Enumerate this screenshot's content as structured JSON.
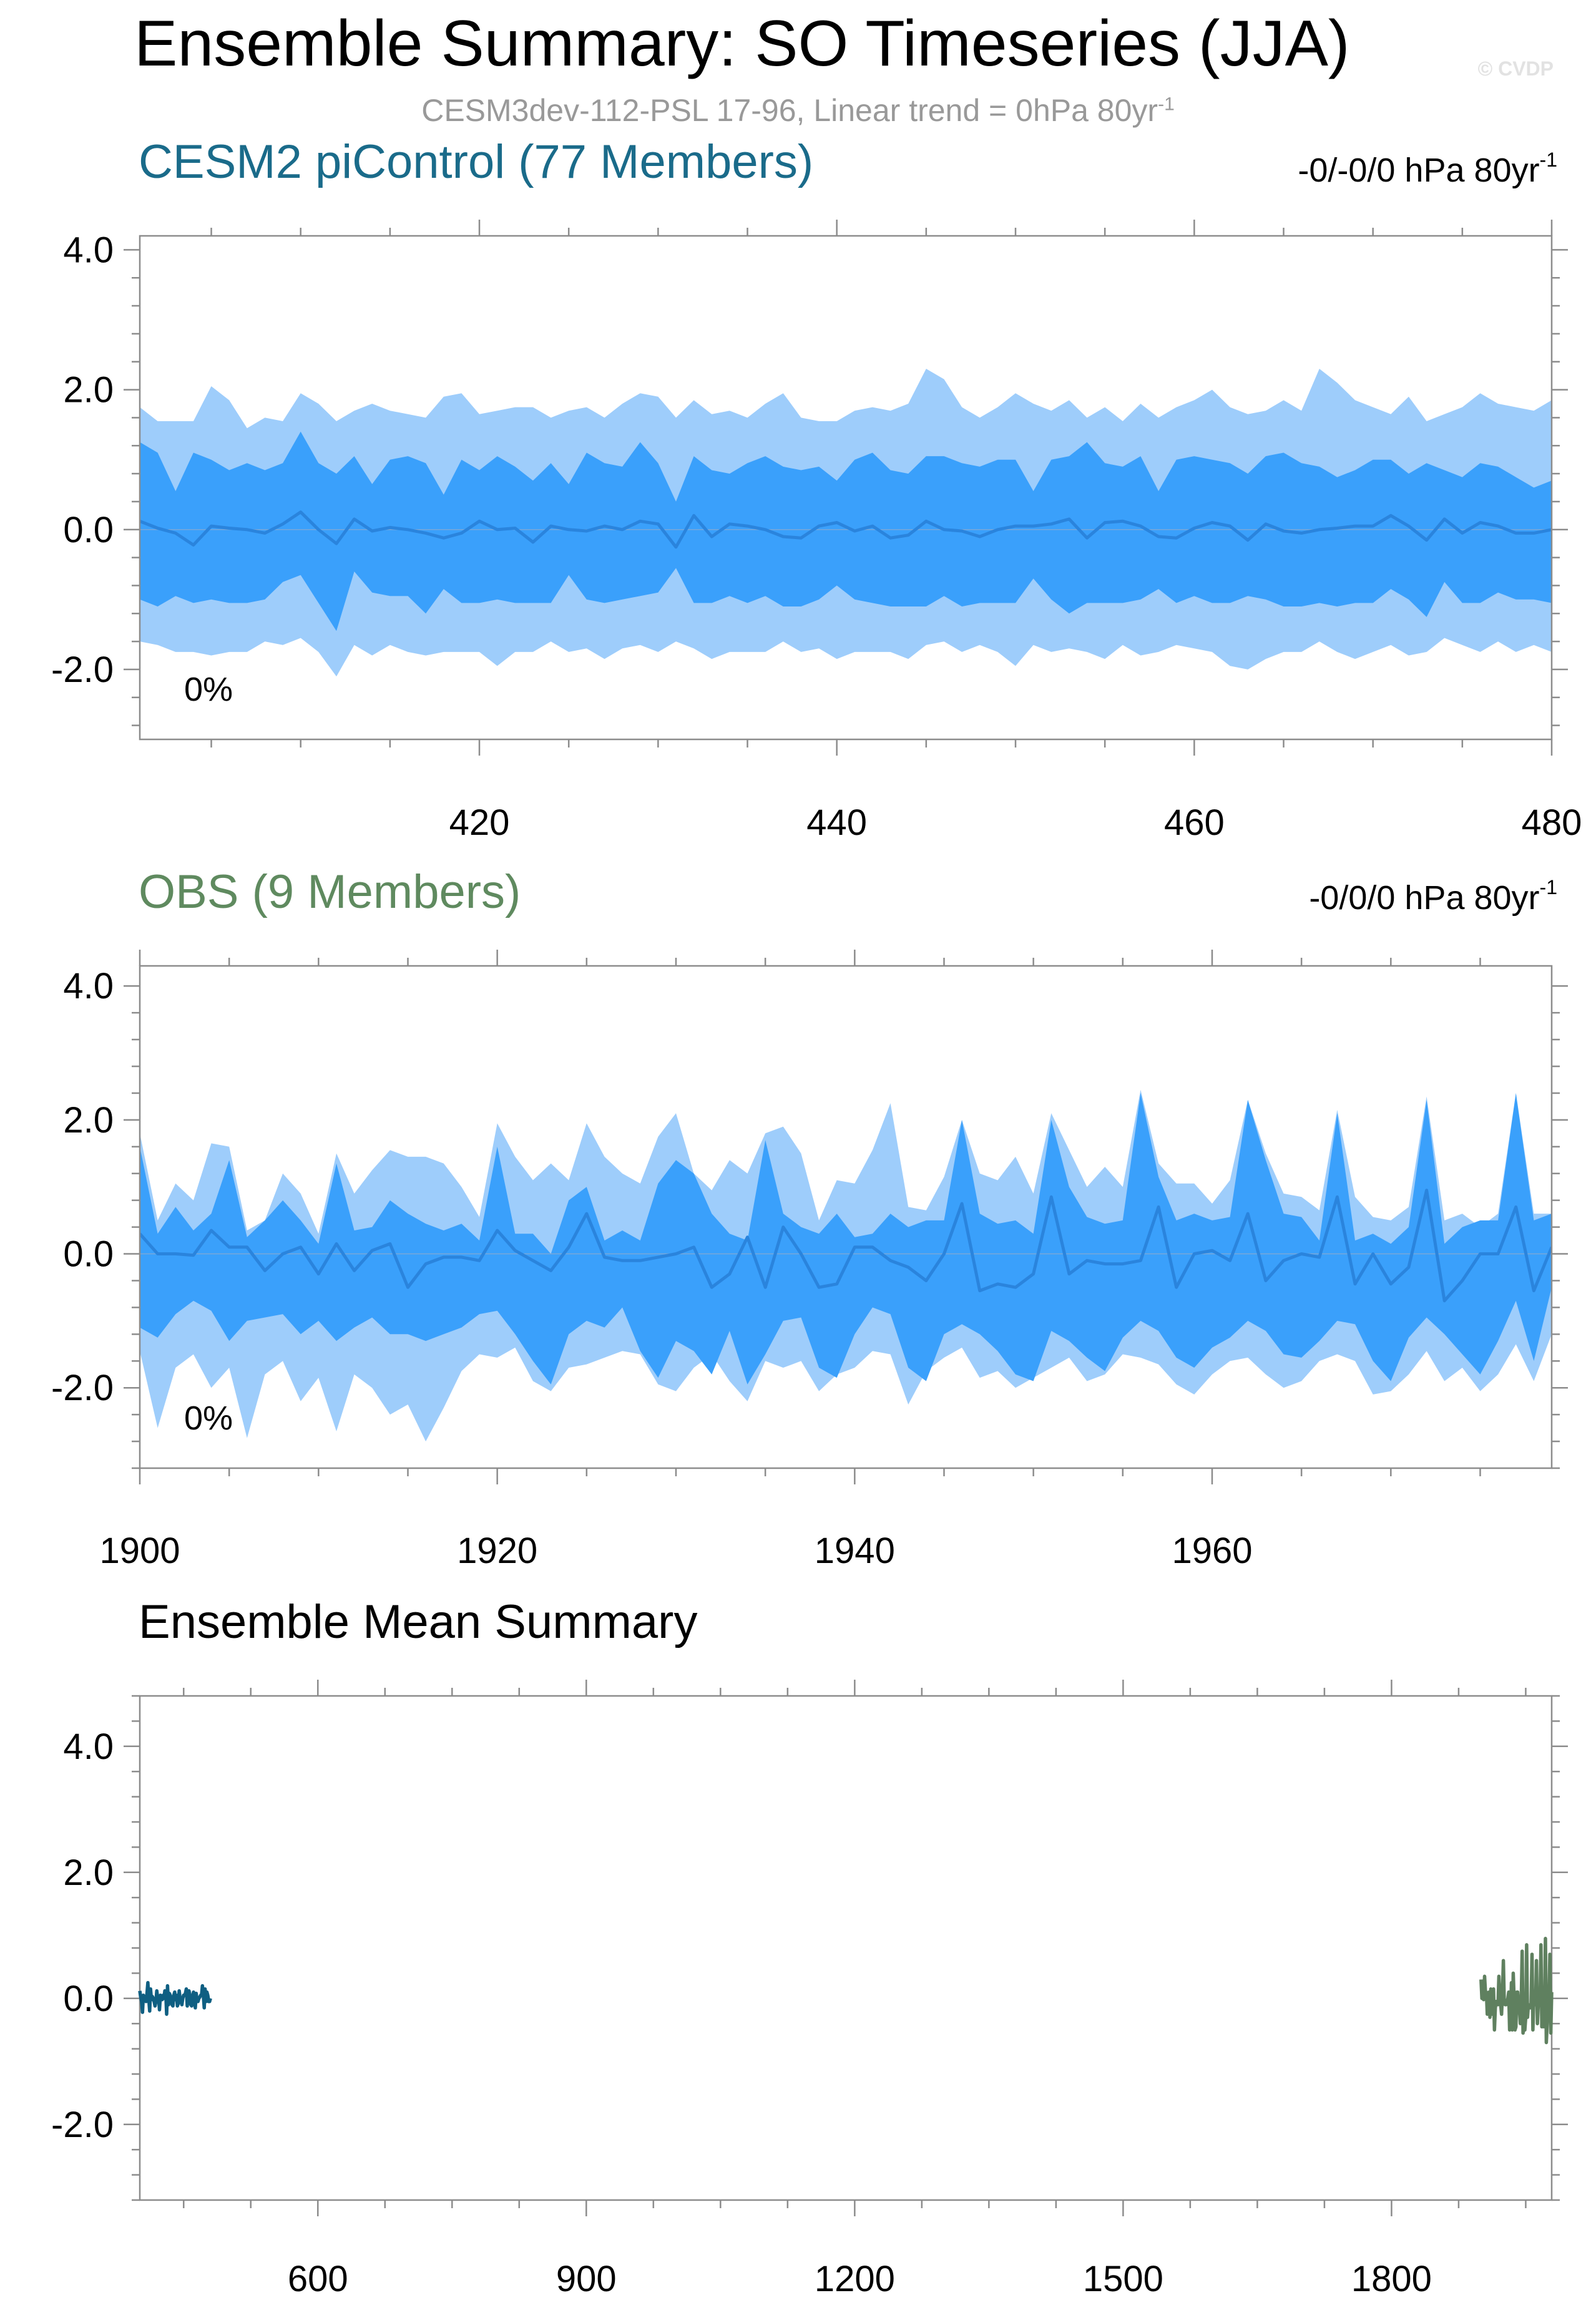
{
  "header": {
    "title": "Ensemble Summary: SO Timeseries (JJA)",
    "subtitle_text": "CESM3dev-112-PSL 17-96, Linear trend = 0hPa 80yr",
    "subtitle_sup": "-1",
    "watermark": "© CVDP"
  },
  "colors": {
    "model_title": "#1a6b8a",
    "obs_title": "#5f8a5f",
    "band_outer": "#9ecdfb",
    "band_inner": "#3aa0fb",
    "mean_line": "#2a84dd",
    "model_mean_summary": "#0f5f82",
    "obs_mean_summary": "#5f805f"
  },
  "chart_data": [
    {
      "name": "model-panel",
      "type": "area",
      "title": "CESM2 piControl (77 Members)",
      "trend_text": "-0/-0/0 hPa 80yr",
      "trend_sup": "-1",
      "percent_label": "0%",
      "xlim": [
        401,
        480
      ],
      "ylim": [
        -3.0,
        4.2
      ],
      "xticks": [
        420,
        440,
        460,
        480
      ],
      "xtick_labels": [
        "420",
        "440",
        "460",
        "480"
      ],
      "yticks": [
        4.0,
        2.0,
        0.0,
        -2.0
      ],
      "ytick_labels": [
        "4.0",
        "2.0",
        "0.0",
        "-2.0"
      ],
      "x_start": 401,
      "mean": [
        0.12,
        0.02,
        -0.05,
        -0.22,
        0.05,
        0.02,
        0.0,
        -0.05,
        0.08,
        0.25,
        0.0,
        -0.2,
        0.15,
        -0.02,
        0.03,
        0.0,
        -0.05,
        -0.12,
        -0.05,
        0.12,
        0.0,
        0.02,
        -0.18,
        0.05,
        0.0,
        -0.02,
        0.05,
        0.0,
        0.12,
        0.08,
        -0.25,
        0.2,
        -0.1,
        0.08,
        0.05,
        0.0,
        -0.1,
        -0.12,
        0.05,
        0.1,
        -0.02,
        0.05,
        -0.12,
        -0.08,
        0.12,
        0.0,
        -0.02,
        -0.1,
        0.0,
        0.05,
        0.05,
        0.08,
        0.15,
        -0.12,
        0.1,
        0.12,
        0.05,
        -0.1,
        -0.12,
        0.02,
        0.1,
        0.05,
        -0.15,
        0.08,
        -0.02,
        -0.05,
        0.0,
        0.02,
        0.05,
        0.05,
        0.2,
        0.05,
        -0.15,
        0.15,
        -0.05,
        0.1,
        0.05,
        -0.05,
        -0.05,
        0.0
      ],
      "inner_upper": [
        1.25,
        1.1,
        0.55,
        1.1,
        1.0,
        0.85,
        0.95,
        0.85,
        0.95,
        1.4,
        0.95,
        0.8,
        1.05,
        0.65,
        1.0,
        1.05,
        0.95,
        0.5,
        1.0,
        0.85,
        1.05,
        0.9,
        0.7,
        0.95,
        0.65,
        1.1,
        0.95,
        0.9,
        1.25,
        0.95,
        0.4,
        1.05,
        0.85,
        0.8,
        0.95,
        1.05,
        0.9,
        0.85,
        0.9,
        0.7,
        1.0,
        1.1,
        0.85,
        0.8,
        1.05,
        1.05,
        0.95,
        0.9,
        1.0,
        1.0,
        0.55,
        1.0,
        1.05,
        1.25,
        0.95,
        0.9,
        1.05,
        0.55,
        1.0,
        1.05,
        1.0,
        0.95,
        0.8,
        1.05,
        1.1,
        0.95,
        0.9,
        0.75,
        0.85,
        1.0,
        1.0,
        0.8,
        0.95,
        0.85,
        0.75,
        0.95,
        0.9,
        0.75,
        0.6,
        0.7
      ],
      "inner_lower": [
        -1.0,
        -1.1,
        -0.95,
        -1.05,
        -1.0,
        -1.05,
        -1.05,
        -1.0,
        -0.75,
        -0.65,
        -1.05,
        -1.45,
        -0.6,
        -0.9,
        -0.95,
        -0.95,
        -1.2,
        -0.85,
        -1.05,
        -1.05,
        -1.0,
        -1.05,
        -1.05,
        -1.05,
        -0.65,
        -1.0,
        -1.05,
        -1.0,
        -0.95,
        -0.9,
        -0.55,
        -1.05,
        -1.05,
        -0.95,
        -1.05,
        -0.95,
        -1.1,
        -1.1,
        -1.0,
        -0.8,
        -1.0,
        -1.05,
        -1.1,
        -1.1,
        -1.1,
        -0.95,
        -1.1,
        -1.05,
        -1.05,
        -1.05,
        -0.7,
        -1.0,
        -1.2,
        -1.05,
        -1.05,
        -1.05,
        -1.0,
        -0.85,
        -1.05,
        -0.95,
        -1.05,
        -1.05,
        -0.95,
        -1.0,
        -1.1,
        -1.1,
        -1.05,
        -1.1,
        -1.05,
        -1.05,
        -0.85,
        -1.0,
        -1.25,
        -0.75,
        -1.05,
        -1.05,
        -0.9,
        -1.0,
        -1.0,
        -1.05
      ],
      "outer_upper": [
        1.75,
        1.55,
        1.55,
        1.55,
        2.05,
        1.85,
        1.45,
        1.6,
        1.55,
        1.95,
        1.8,
        1.55,
        1.7,
        1.8,
        1.7,
        1.65,
        1.6,
        1.9,
        1.95,
        1.65,
        1.7,
        1.75,
        1.75,
        1.6,
        1.7,
        1.75,
        1.6,
        1.8,
        1.95,
        1.9,
        1.6,
        1.85,
        1.65,
        1.7,
        1.6,
        1.8,
        1.95,
        1.6,
        1.55,
        1.55,
        1.7,
        1.75,
        1.7,
        1.8,
        2.3,
        2.15,
        1.75,
        1.6,
        1.75,
        1.95,
        1.8,
        1.7,
        1.85,
        1.6,
        1.75,
        1.55,
        1.8,
        1.6,
        1.75,
        1.85,
        2.0,
        1.75,
        1.65,
        1.7,
        1.85,
        1.7,
        2.3,
        2.1,
        1.85,
        1.75,
        1.65,
        1.9,
        1.55,
        1.65,
        1.75,
        1.95,
        1.8,
        1.75,
        1.7,
        1.85
      ],
      "outer_lower": [
        -1.6,
        -1.65,
        -1.75,
        -1.75,
        -1.8,
        -1.75,
        -1.75,
        -1.6,
        -1.65,
        -1.55,
        -1.75,
        -2.1,
        -1.65,
        -1.8,
        -1.65,
        -1.75,
        -1.8,
        -1.75,
        -1.75,
        -1.75,
        -1.95,
        -1.75,
        -1.75,
        -1.6,
        -1.75,
        -1.7,
        -1.85,
        -1.7,
        -1.65,
        -1.75,
        -1.6,
        -1.7,
        -1.85,
        -1.75,
        -1.75,
        -1.75,
        -1.6,
        -1.75,
        -1.7,
        -1.85,
        -1.75,
        -1.75,
        -1.75,
        -1.85,
        -1.65,
        -1.6,
        -1.75,
        -1.65,
        -1.75,
        -1.95,
        -1.65,
        -1.75,
        -1.7,
        -1.75,
        -1.85,
        -1.65,
        -1.8,
        -1.75,
        -1.65,
        -1.7,
        -1.75,
        -1.95,
        -2.0,
        -1.85,
        -1.75,
        -1.75,
        -1.6,
        -1.75,
        -1.85,
        -1.75,
        -1.65,
        -1.8,
        -1.75,
        -1.55,
        -1.65,
        -1.75,
        -1.6,
        -1.75,
        -1.65,
        -1.75
      ]
    },
    {
      "name": "obs-panel",
      "type": "area",
      "title": "OBS (9 Members)",
      "trend_text": "-0/0/0 hPa 80yr",
      "trend_sup": "-1",
      "percent_label": "0%",
      "xlim": [
        1900,
        1979
      ],
      "ylim": [
        -3.2,
        4.3
      ],
      "xticks": [
        1900,
        1920,
        1940,
        1960
      ],
      "xtick_labels": [
        "1900",
        "1920",
        "1940",
        "1960"
      ],
      "yticks": [
        4.0,
        2.0,
        0.0,
        -2.0
      ],
      "ytick_labels": [
        "4.0",
        "2.0",
        "0.0",
        "-2.0"
      ],
      "x_start": 1900,
      "mean": [
        0.3,
        0.0,
        0.0,
        -0.02,
        0.35,
        0.1,
        0.1,
        -0.25,
        0.0,
        0.1,
        -0.3,
        0.15,
        -0.25,
        0.05,
        0.15,
        -0.5,
        -0.15,
        -0.05,
        -0.05,
        -0.1,
        0.35,
        0.05,
        -0.1,
        -0.25,
        0.1,
        0.6,
        -0.05,
        -0.1,
        -0.1,
        -0.05,
        0.0,
        0.1,
        -0.5,
        -0.3,
        0.25,
        -0.5,
        0.4,
        0.0,
        -0.5,
        -0.45,
        0.1,
        0.1,
        -0.1,
        -0.2,
        -0.4,
        0.0,
        0.75,
        -0.55,
        -0.45,
        -0.5,
        -0.3,
        0.85,
        -0.3,
        -0.1,
        -0.15,
        -0.15,
        -0.1,
        0.7,
        -0.5,
        0.0,
        0.05,
        -0.1,
        0.6,
        -0.4,
        -0.1,
        0.0,
        -0.05,
        0.85,
        -0.45,
        0.0,
        -0.45,
        -0.2,
        0.95,
        -0.7,
        -0.4,
        0.0,
        0.0,
        0.7,
        -0.55,
        0.1
      ],
      "inner_upper": [
        1.6,
        0.3,
        0.7,
        0.35,
        0.6,
        1.4,
        0.25,
        0.5,
        0.8,
        0.5,
        0.15,
        1.35,
        0.35,
        0.4,
        0.8,
        0.6,
        0.45,
        0.35,
        0.45,
        0.2,
        1.6,
        0.3,
        0.3,
        0.0,
        0.8,
        1.0,
        0.2,
        0.35,
        0.2,
        1.05,
        1.4,
        1.2,
        0.6,
        0.3,
        0.2,
        1.7,
        0.6,
        0.4,
        0.3,
        0.6,
        0.25,
        0.3,
        0.6,
        0.4,
        0.5,
        0.5,
        2.0,
        0.6,
        0.45,
        0.5,
        0.3,
        2.0,
        1.0,
        0.55,
        0.45,
        0.5,
        2.4,
        1.15,
        0.5,
        0.6,
        0.5,
        0.55,
        2.3,
        1.4,
        0.6,
        0.55,
        0.2,
        2.1,
        0.2,
        0.3,
        0.15,
        0.4,
        2.3,
        0.15,
        0.4,
        0.5,
        0.5,
        2.4,
        0.5,
        0.6
      ],
      "inner_lower": [
        -1.1,
        -1.25,
        -0.9,
        -0.7,
        -0.85,
        -1.3,
        -1.0,
        -0.95,
        -0.9,
        -1.2,
        -1.0,
        -1.3,
        -1.1,
        -0.95,
        -1.2,
        -1.2,
        -1.3,
        -1.2,
        -1.1,
        -0.9,
        -0.85,
        -1.2,
        -1.6,
        -1.95,
        -1.2,
        -1.0,
        -1.1,
        -0.8,
        -1.45,
        -1.85,
        -1.3,
        -1.45,
        -1.8,
        -1.15,
        -1.95,
        -1.5,
        -1.0,
        -0.95,
        -1.7,
        -1.85,
        -1.2,
        -0.8,
        -0.9,
        -1.7,
        -1.9,
        -1.2,
        -1.05,
        -1.2,
        -1.45,
        -1.8,
        -1.9,
        -1.15,
        -1.3,
        -1.55,
        -1.75,
        -1.25,
        -1.0,
        -1.15,
        -1.55,
        -1.7,
        -1.4,
        -1.25,
        -1.0,
        -1.15,
        -1.5,
        -1.55,
        -1.3,
        -1.0,
        -1.05,
        -1.6,
        -1.9,
        -1.25,
        -0.95,
        -1.2,
        -1.5,
        -1.8,
        -1.3,
        -0.7,
        -1.6,
        -0.5
      ],
      "outer_upper": [
        1.8,
        0.5,
        1.05,
        0.8,
        1.65,
        1.6,
        0.35,
        0.5,
        1.2,
        0.9,
        0.3,
        1.5,
        0.9,
        1.25,
        1.55,
        1.45,
        1.45,
        1.35,
        1.0,
        0.55,
        1.95,
        1.45,
        1.1,
        1.35,
        1.1,
        1.95,
        1.45,
        1.2,
        1.05,
        1.75,
        2.1,
        1.2,
        0.95,
        1.4,
        1.2,
        1.8,
        1.9,
        1.5,
        0.5,
        1.1,
        1.05,
        1.55,
        2.25,
        0.7,
        0.65,
        1.15,
        2.0,
        1.2,
        1.1,
        1.45,
        0.9,
        2.1,
        1.55,
        1.0,
        1.3,
        1.0,
        2.45,
        1.35,
        1.05,
        1.05,
        0.75,
        1.1,
        2.3,
        1.5,
        0.9,
        0.85,
        0.65,
        2.15,
        0.85,
        0.55,
        0.5,
        0.7,
        2.35,
        0.5,
        0.6,
        0.4,
        0.6,
        2.4,
        0.6,
        0.6
      ],
      "outer_lower": [
        -1.45,
        -2.6,
        -1.7,
        -1.5,
        -2.0,
        -1.7,
        -2.75,
        -1.8,
        -1.6,
        -2.2,
        -1.85,
        -2.65,
        -1.8,
        -2.0,
        -2.4,
        -2.25,
        -2.8,
        -2.3,
        -1.75,
        -1.5,
        -1.55,
        -1.4,
        -1.9,
        -2.05,
        -1.7,
        -1.65,
        -1.55,
        -1.45,
        -1.5,
        -1.95,
        -2.05,
        -1.7,
        -1.5,
        -1.9,
        -2.2,
        -1.6,
        -1.7,
        -1.6,
        -2.05,
        -1.8,
        -1.7,
        -1.45,
        -1.5,
        -2.25,
        -1.75,
        -1.55,
        -1.4,
        -1.85,
        -1.75,
        -2.0,
        -1.85,
        -1.7,
        -1.55,
        -1.9,
        -1.8,
        -1.5,
        -1.55,
        -1.65,
        -1.95,
        -2.1,
        -1.8,
        -1.6,
        -1.55,
        -1.8,
        -2.0,
        -1.9,
        -1.6,
        -1.5,
        -1.6,
        -2.1,
        -2.05,
        -1.8,
        -1.45,
        -1.9,
        -1.7,
        -2.05,
        -1.8,
        -1.35,
        -1.9,
        -1.2
      ]
    },
    {
      "name": "summary-panel",
      "type": "line",
      "title": "Ensemble Mean Summary",
      "xlim": [
        401,
        1979
      ],
      "ylim": [
        -3.2,
        4.8
      ],
      "xticks": [
        600,
        900,
        1200,
        1500,
        1800
      ],
      "xtick_labels": [
        "600",
        "900",
        "1200",
        "1500",
        "1800"
      ],
      "yticks": [
        4.0,
        2.0,
        0.0,
        -2.0
      ],
      "ytick_labels": [
        "4.0",
        "2.0",
        "0.0",
        "-2.0"
      ],
      "series": [
        {
          "source": "model",
          "x_start": 401,
          "values_ref": "model-panel.mean"
        },
        {
          "source": "obs",
          "x_start": 1900,
          "values_ref": "obs-panel.mean"
        }
      ]
    }
  ]
}
